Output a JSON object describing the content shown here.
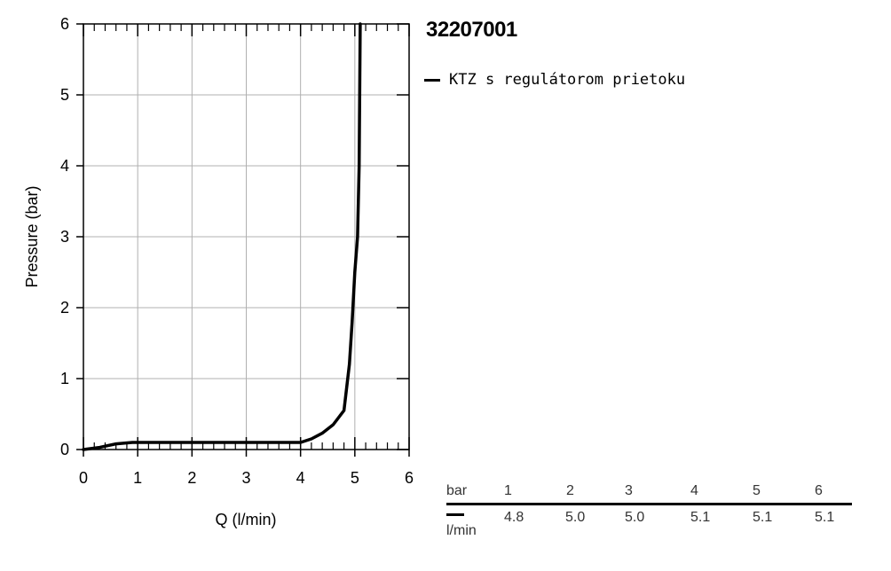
{
  "chart_data": {
    "type": "line",
    "title": "32207001",
    "xlabel": "Q (l/min)",
    "ylabel": "Pressure (bar)",
    "xlim": [
      0,
      6
    ],
    "ylim": [
      0,
      6
    ],
    "x_ticks": [
      "0",
      "1",
      "2",
      "3",
      "4",
      "5",
      "6"
    ],
    "y_ticks": [
      "0",
      "1",
      "2",
      "3",
      "4",
      "5",
      "6"
    ],
    "grid": true,
    "legend_position": "right",
    "series": [
      {
        "name": "KTZ s regulátorom prietoku",
        "color": "#000000",
        "points": [
          [
            0,
            0
          ],
          [
            0.3,
            0.03
          ],
          [
            0.6,
            0.08
          ],
          [
            0.9,
            0.1
          ],
          [
            1.5,
            0.1
          ],
          [
            2.5,
            0.1
          ],
          [
            3.5,
            0.1
          ],
          [
            4.0,
            0.1
          ],
          [
            4.2,
            0.15
          ],
          [
            4.4,
            0.23
          ],
          [
            4.6,
            0.35
          ],
          [
            4.8,
            0.55
          ],
          [
            4.9,
            1.2
          ],
          [
            4.95,
            1.8
          ],
          [
            5.0,
            2.5
          ],
          [
            5.05,
            3.0
          ],
          [
            5.08,
            4.0
          ],
          [
            5.1,
            6.0
          ]
        ]
      }
    ]
  },
  "table": {
    "header_unit": "bar",
    "row_unit": "l/min",
    "pressures": [
      "1",
      "2",
      "3",
      "4",
      "5",
      "6"
    ],
    "flows": [
      "4.8",
      "5.0",
      "5.0",
      "5.1",
      "5.1",
      "5.1"
    ]
  }
}
